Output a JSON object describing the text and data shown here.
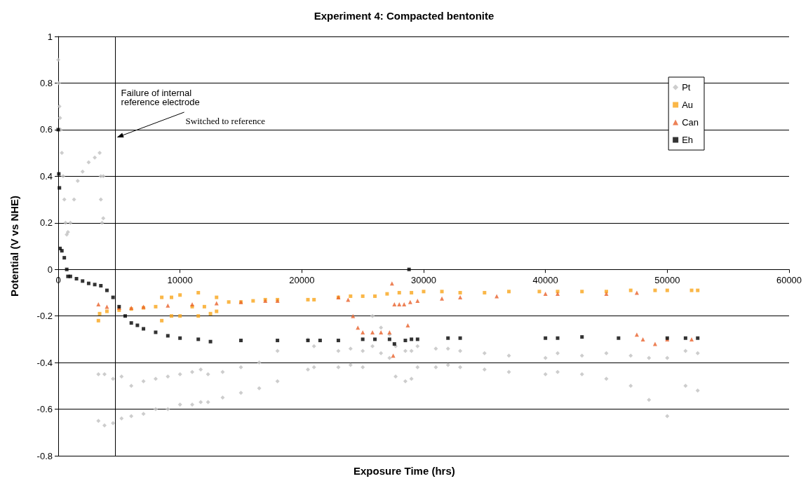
{
  "chart_data": {
    "type": "scatter",
    "title": "Experiment 4: Compacted bentonite",
    "xlabel": "Exposure Time (hrs)",
    "ylabel": "Potential (V vs NHE)",
    "xlim": [
      0,
      60000
    ],
    "xticks": [
      0,
      10000,
      20000,
      30000,
      40000,
      50000,
      60000
    ],
    "ylim": [
      -0.8,
      1
    ],
    "yticks": [
      -0.8,
      -0.6,
      -0.4,
      -0.2,
      0,
      0.2,
      0.4,
      0.6,
      0.8,
      1
    ],
    "grid": "y",
    "legend": "top right",
    "ref_lines": [
      {
        "axis": "x",
        "value": 4700,
        "label": "Failure of internal reference electrode",
        "color": "#000000"
      }
    ],
    "annotations": [
      "Switched to reference"
    ],
    "series": [
      {
        "name": "Pt",
        "color": "#c0c0c0",
        "marker": "diamond",
        "x": [
          0,
          50,
          100,
          150,
          200,
          300,
          400,
          500,
          600,
          700,
          800,
          1000,
          1300,
          1600,
          2000,
          2500,
          3000,
          3400,
          3500,
          3500,
          3600,
          3700,
          3700,
          3300,
          3300,
          3800,
          3800,
          4500,
          4500,
          5200,
          5200,
          6000,
          6000,
          7000,
          7000,
          8000,
          8000,
          9000,
          9000,
          10000,
          10000,
          11000,
          11000,
          11700,
          11700,
          12300,
          12300,
          13500,
          13500,
          15000,
          15000,
          16500,
          16500,
          18000,
          18000,
          20500,
          20500,
          21000,
          21000,
          23000,
          23000,
          24000,
          24000,
          25000,
          25000,
          25800,
          25800,
          26500,
          26500,
          27200,
          27200,
          27700,
          27700,
          28500,
          28500,
          29000,
          29000,
          29500,
          29500,
          31000,
          31000,
          32000,
          32000,
          33000,
          33000,
          35000,
          35000,
          37000,
          37000,
          40000,
          40000,
          41000,
          41000,
          43000,
          43000,
          45000,
          45000,
          47000,
          47000,
          48500,
          48500,
          50000,
          50000,
          51500,
          51500,
          52500,
          52500
        ],
        "values": [
          0.9,
          0.8,
          0.7,
          0.65,
          0.6,
          0.5,
          0.4,
          0.3,
          0.2,
          0.15,
          0.16,
          0.2,
          0.3,
          0.38,
          0.42,
          0.46,
          0.48,
          0.5,
          0.4,
          0.3,
          0.2,
          0.22,
          0.4,
          -0.45,
          -0.65,
          -0.45,
          -0.67,
          -0.47,
          -0.66,
          -0.46,
          -0.64,
          -0.5,
          -0.63,
          -0.48,
          -0.62,
          -0.47,
          -0.6,
          -0.46,
          -0.6,
          -0.45,
          -0.58,
          -0.44,
          -0.58,
          -0.43,
          -0.57,
          -0.45,
          -0.57,
          -0.44,
          -0.55,
          -0.42,
          -0.53,
          -0.4,
          -0.51,
          -0.35,
          -0.48,
          -0.3,
          -0.43,
          -0.33,
          -0.42,
          -0.35,
          -0.42,
          -0.34,
          -0.41,
          -0.35,
          -0.42,
          -0.2,
          -0.33,
          -0.25,
          -0.36,
          -0.28,
          -0.38,
          -0.33,
          -0.46,
          -0.35,
          -0.48,
          -0.35,
          -0.47,
          -0.33,
          -0.42,
          -0.34,
          -0.42,
          -0.34,
          -0.41,
          -0.35,
          -0.42,
          -0.36,
          -0.43,
          -0.37,
          -0.44,
          -0.38,
          -0.45,
          -0.36,
          -0.44,
          -0.37,
          -0.45,
          -0.36,
          -0.47,
          -0.37,
          -0.5,
          -0.38,
          -0.56,
          -0.38,
          -0.63,
          -0.35,
          -0.5,
          -0.36,
          -0.52
        ]
      },
      {
        "name": "Au",
        "color": "#f9a51a",
        "marker": "square",
        "x": [
          3300,
          3400,
          4000,
          5000,
          6000,
          7000,
          8000,
          8500,
          8500,
          9300,
          9300,
          10000,
          10000,
          11000,
          11500,
          11500,
          12000,
          12500,
          13000,
          13000,
          14000,
          15000,
          16000,
          17000,
          18000,
          20500,
          21000,
          23000,
          24000,
          25000,
          26000,
          27000,
          28000,
          29000,
          30000,
          31500,
          33000,
          35000,
          37000,
          39500,
          41000,
          43000,
          45000,
          47000,
          49000,
          50000,
          52000,
          52500
        ],
        "values": [
          -0.22,
          -0.19,
          -0.18,
          -0.175,
          -0.17,
          -0.165,
          -0.16,
          -0.22,
          -0.12,
          -0.2,
          -0.12,
          -0.2,
          -0.11,
          -0.16,
          -0.2,
          -0.1,
          -0.16,
          -0.19,
          -0.12,
          -0.18,
          -0.14,
          -0.14,
          -0.135,
          -0.13,
          -0.13,
          -0.13,
          -0.13,
          -0.12,
          -0.115,
          -0.115,
          -0.115,
          -0.105,
          -0.1,
          -0.1,
          -0.095,
          -0.095,
          -0.1,
          -0.1,
          -0.095,
          -0.095,
          -0.095,
          -0.095,
          -0.095,
          -0.09,
          -0.09,
          -0.09,
          -0.09,
          -0.09
        ]
      },
      {
        "name": "Can",
        "color": "#e8612c",
        "marker": "triangle",
        "x": [
          3300,
          4000,
          5000,
          6000,
          7000,
          9000,
          11000,
          13000,
          15000,
          17000,
          18000,
          23000,
          23800,
          24200,
          24600,
          25000,
          25800,
          26500,
          27200,
          27400,
          27500,
          27600,
          28000,
          28400,
          28700,
          28900,
          29500,
          31500,
          33000,
          36000,
          40000,
          41000,
          45000,
          47500,
          47500,
          48000,
          49000,
          50000,
          52000
        ],
        "values": [
          -0.15,
          -0.16,
          -0.165,
          -0.165,
          -0.16,
          -0.155,
          -0.15,
          -0.145,
          -0.14,
          -0.135,
          -0.135,
          -0.12,
          -0.13,
          -0.2,
          -0.25,
          -0.27,
          -0.27,
          -0.27,
          -0.27,
          -0.06,
          -0.37,
          -0.15,
          -0.15,
          -0.15,
          -0.24,
          -0.14,
          -0.135,
          -0.125,
          -0.12,
          -0.115,
          -0.105,
          -0.105,
          -0.105,
          -0.1,
          -0.28,
          -0.3,
          -0.32,
          -0.3,
          -0.3
        ]
      },
      {
        "name": "Eh",
        "color": "#000000",
        "marker": "square",
        "x": [
          0,
          50,
          100,
          150,
          300,
          500,
          700,
          800,
          1000,
          1500,
          2000,
          2500,
          3000,
          3500,
          4000,
          4500,
          5000,
          5500,
          6000,
          6500,
          7000,
          8000,
          9000,
          10000,
          11500,
          12500,
          15000,
          18000,
          20500,
          21500,
          23000,
          25000,
          26000,
          27200,
          27600,
          28500,
          28800,
          29000,
          29500,
          32000,
          33000,
          40000,
          41000,
          43000,
          46000,
          50000,
          51500,
          52500
        ],
        "values": [
          0.6,
          0.41,
          0.35,
          0.09,
          0.08,
          0.05,
          0.0,
          -0.03,
          -0.03,
          -0.04,
          -0.05,
          -0.06,
          -0.065,
          -0.07,
          -0.09,
          -0.12,
          -0.16,
          -0.2,
          -0.23,
          -0.24,
          -0.255,
          -0.27,
          -0.285,
          -0.295,
          -0.3,
          -0.31,
          -0.305,
          -0.305,
          -0.305,
          -0.305,
          -0.305,
          -0.3,
          -0.3,
          -0.3,
          -0.32,
          -0.305,
          0.0,
          -0.3,
          -0.3,
          -0.295,
          -0.295,
          -0.295,
          -0.295,
          -0.29,
          -0.295,
          -0.295,
          -0.295,
          -0.295
        ]
      }
    ]
  }
}
